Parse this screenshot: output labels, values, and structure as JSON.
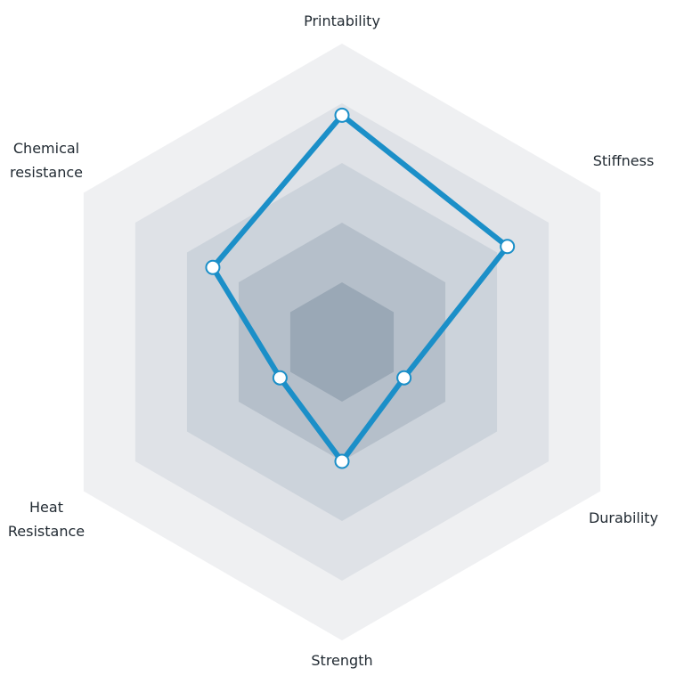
{
  "chart_data": {
    "type": "radar",
    "title": "",
    "axes": [
      "Printability",
      "Stiffness",
      "Durability",
      "Strength",
      "Heat\nResistance",
      "Chemical\nresistance"
    ],
    "scale": [
      0,
      5
    ],
    "rings": 5,
    "series": [
      {
        "values": [
          3.8,
          3.2,
          1.2,
          2.0,
          1.2,
          2.5
        ]
      }
    ],
    "colors": {
      "series": "#1b8fc8",
      "point_fill": "#ffffff",
      "rings": [
        "#eff0f2",
        "#dfe2e7",
        "#ccd3db",
        "#b5bfca",
        "#9aa8b6"
      ]
    }
  }
}
